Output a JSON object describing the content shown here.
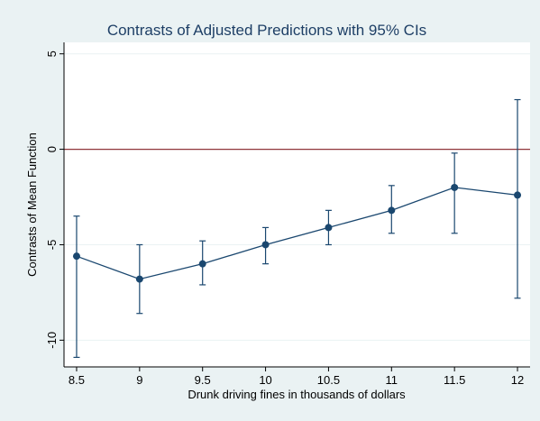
{
  "chart_data": {
    "type": "line",
    "title": "Contrasts of Adjusted Predictions with 95% CIs",
    "xlabel": "Drunk driving fines in thousands of dollars",
    "ylabel": "Contrasts of Mean Function",
    "x": [
      8.5,
      9,
      9.5,
      10,
      10.5,
      11,
      11.5,
      12
    ],
    "x_tick_labels": [
      "8.5",
      "9",
      "9.5",
      "10",
      "10.5",
      "11",
      "11.5",
      "12"
    ],
    "y_ticks": [
      5,
      0,
      -5,
      -10
    ],
    "y_tick_labels": [
      "5",
      "0",
      "-5",
      "-10"
    ],
    "xlim": [
      8.4,
      12.1
    ],
    "ylim": [
      -11.4,
      5.6
    ],
    "series": [
      {
        "values": [
          -5.6,
          -6.8,
          -6.0,
          -5.0,
          -4.1,
          -3.2,
          -2.0,
          -2.4
        ],
        "ci_lower": [
          -10.9,
          -8.6,
          -7.1,
          -6.0,
          -5.0,
          -4.4,
          -4.4,
          -7.8
        ],
        "ci_upper": [
          -3.5,
          -5.0,
          -4.8,
          -4.1,
          -3.2,
          -1.9,
          -0.2,
          2.6
        ],
        "color": "#1a476f"
      }
    ],
    "reference_line": {
      "y": 0,
      "color": "#90353b"
    },
    "grid": {
      "y": true,
      "x": false
    },
    "colors": {
      "background": "#eaf2f3",
      "plot_area": "#ffffff",
      "title": "#1e3f66",
      "gridline": "#eaf2f3"
    }
  }
}
